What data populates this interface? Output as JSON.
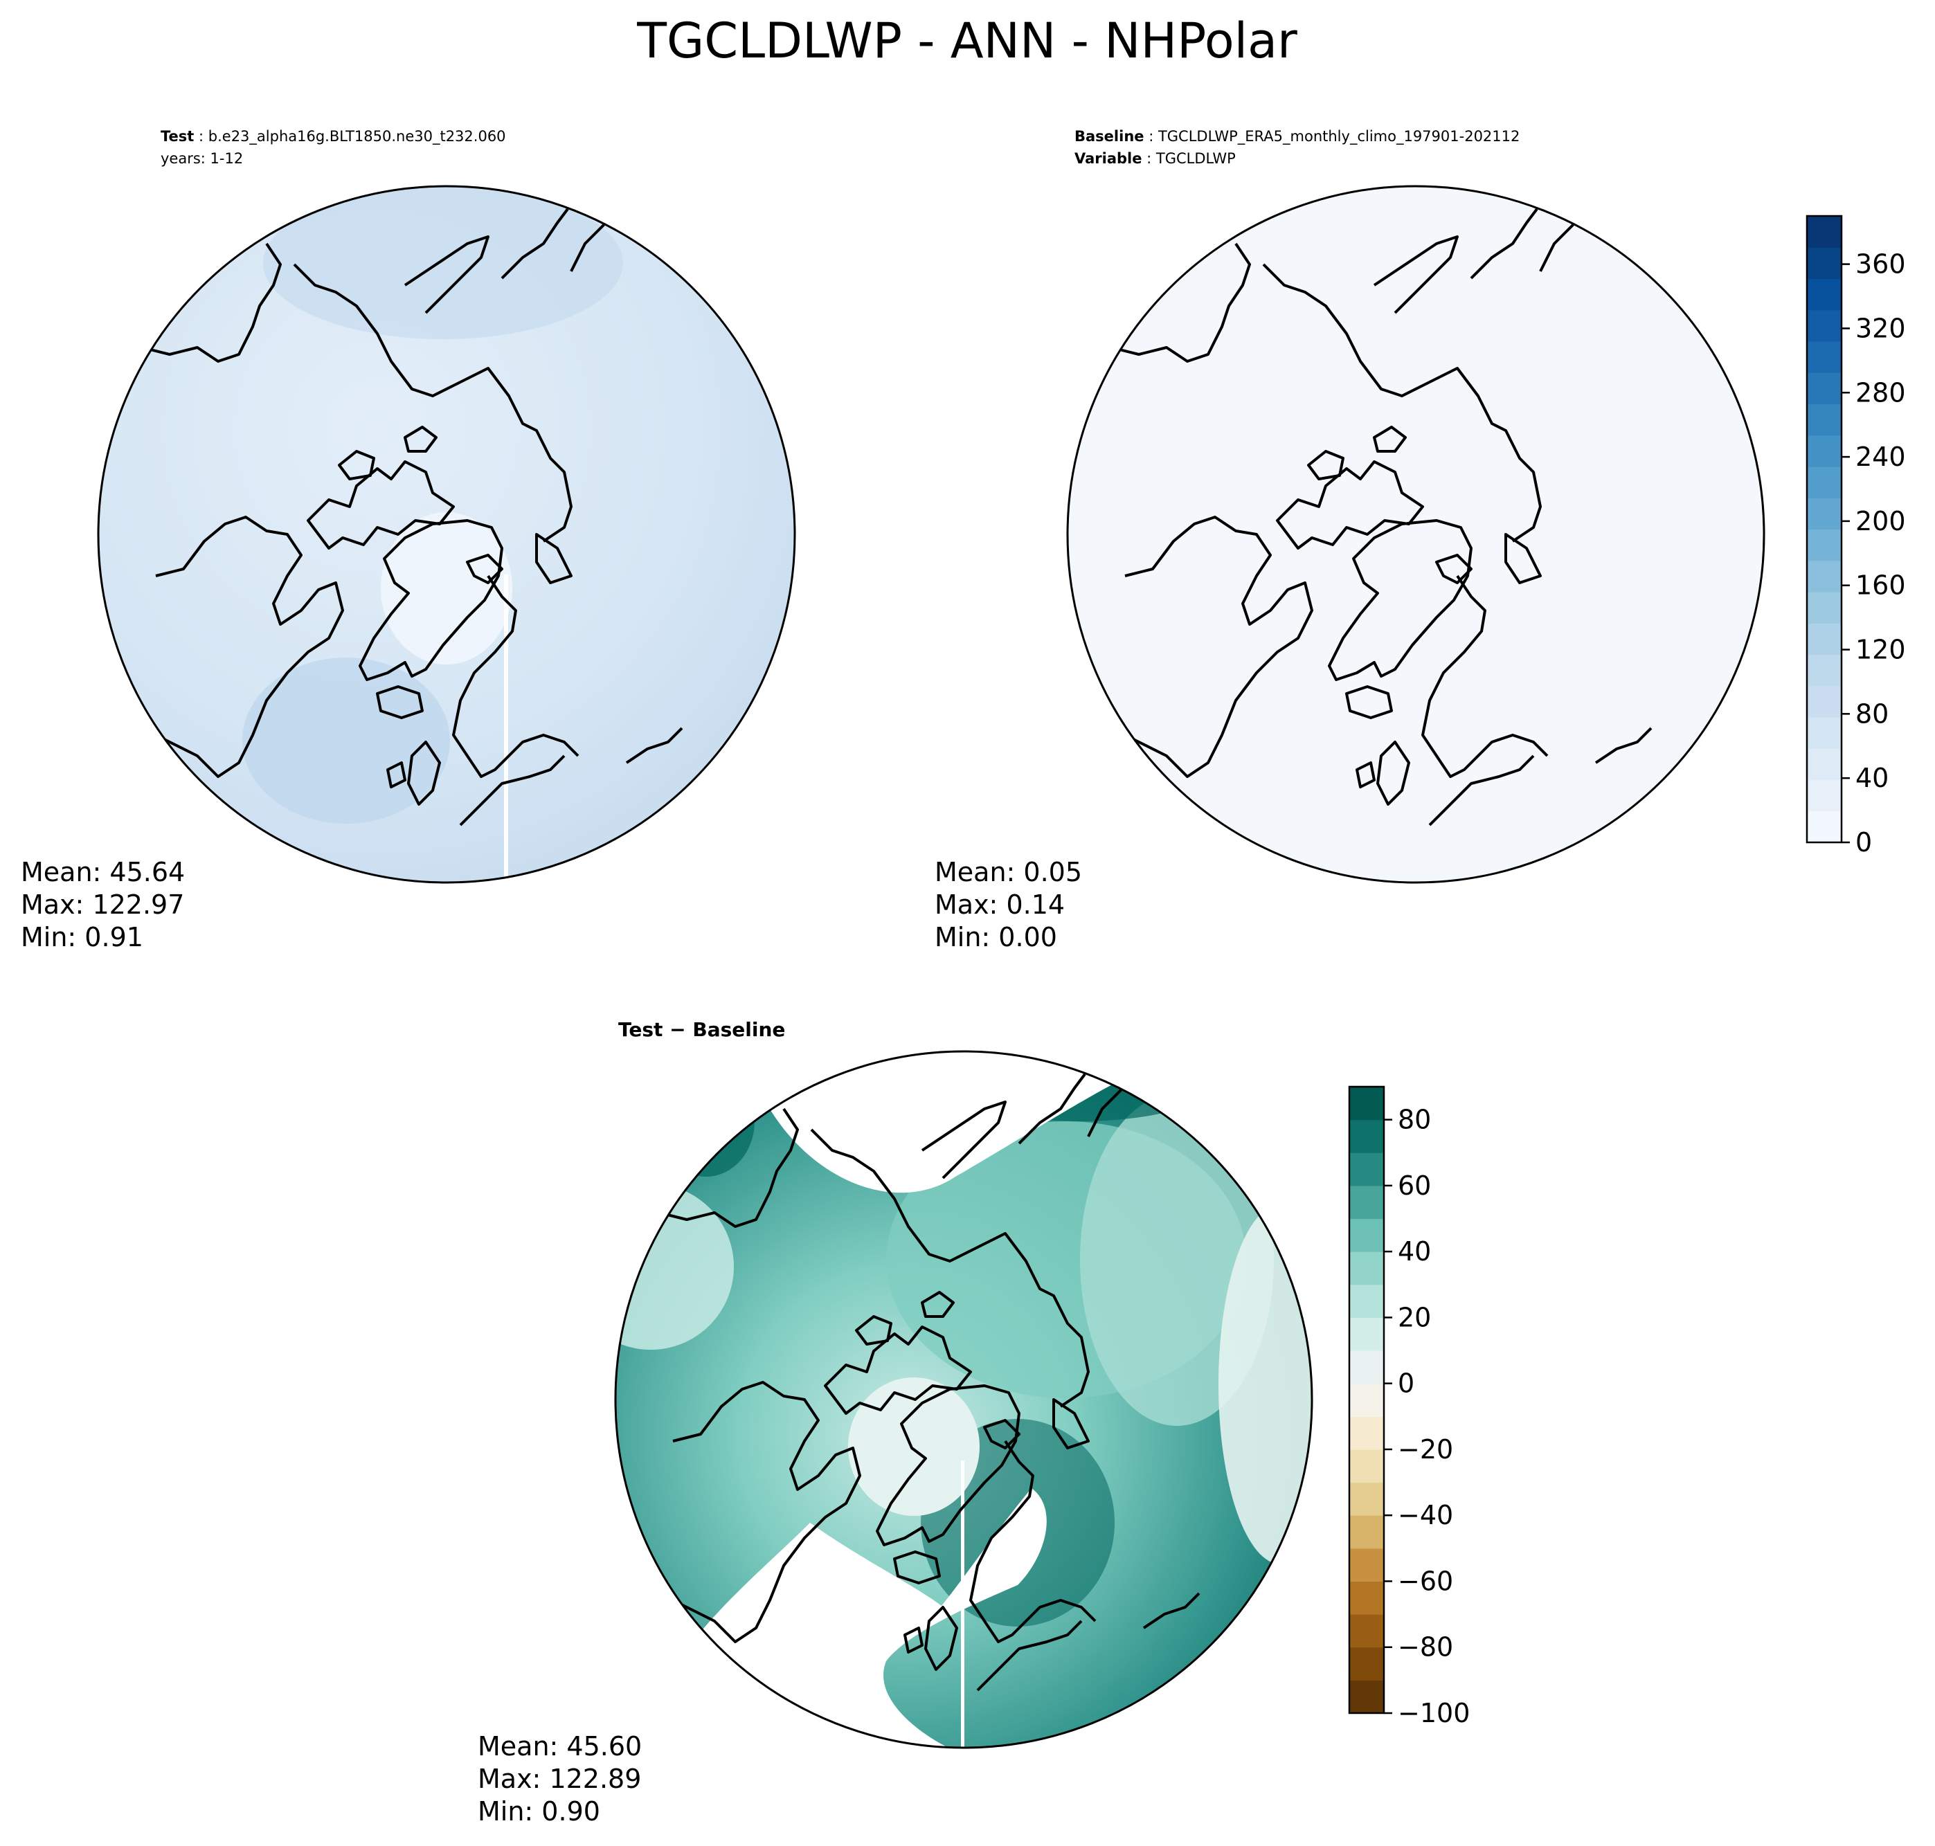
{
  "figure": {
    "title": "TGCLDLWP - ANN - NHPolar"
  },
  "panels": {
    "test": {
      "header_key": "Test",
      "header_value": "b.e23_alpha16g.BLT1850.ne30_t232.060",
      "subheader": "years: 1-12",
      "stats": [
        "Mean: 45.64",
        "Max: 122.97",
        "Min:  0.91"
      ]
    },
    "baseline": {
      "header_key": "Baseline",
      "header_value": "TGCLDLWP_ERA5_monthly_climo_197901-202112",
      "subheader_key": "Variable",
      "subheader_value": "TGCLDLWP",
      "stats": [
        "Mean:  0.05",
        "Max:  0.14",
        "Min:  0.00"
      ]
    },
    "diff": {
      "title": "Test − Baseline",
      "stats": [
        "Mean: 45.60",
        "Max: 122.89",
        "Min:  0.90"
      ]
    }
  },
  "colorbars": {
    "main": {
      "colormap": "Blues",
      "range": [
        0,
        390
      ],
      "levels": 20,
      "ticks": [
        "0",
        "40",
        "80",
        "120",
        "160",
        "200",
        "240",
        "280",
        "320",
        "360"
      ],
      "tick_values": [
        0,
        40,
        80,
        120,
        160,
        200,
        240,
        280,
        320,
        360
      ]
    },
    "diff": {
      "colormap": "BrBG",
      "range": [
        -100,
        90
      ],
      "levels": 19,
      "ticks": [
        "80",
        "60",
        "40",
        "20",
        "0",
        "−20",
        "−40",
        "−60",
        "−80",
        "−100"
      ],
      "tick_values": [
        80,
        60,
        40,
        20,
        0,
        -20,
        -40,
        -60,
        -80,
        -100
      ]
    }
  },
  "colors": {
    "test_fill": "#dbe9f6",
    "baseline_fill": "#f4f8fd",
    "diff_fill": "#80cdc1",
    "coastline": "#000000",
    "missing": "#ffffff"
  }
}
